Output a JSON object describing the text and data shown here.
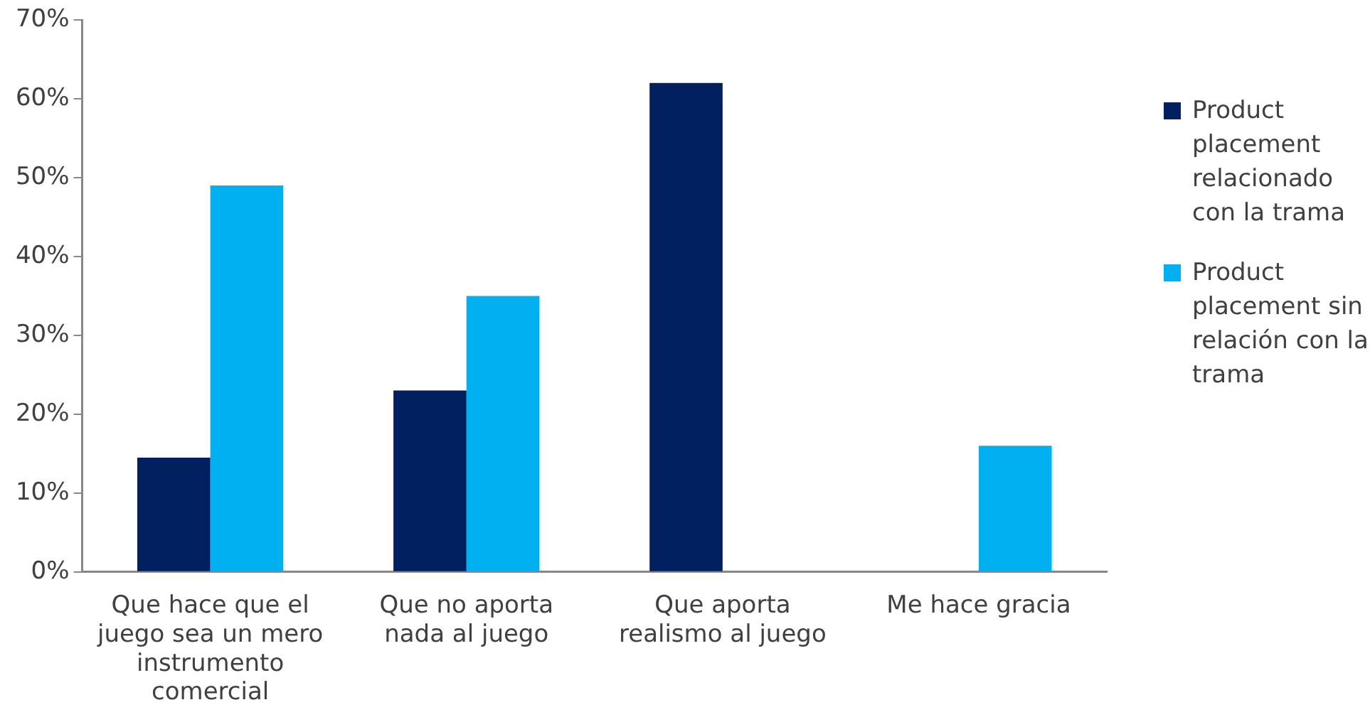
{
  "chart_data": {
    "type": "bar",
    "categories": [
      "Que hace que el juego sea un mero instrumento comercial",
      "Que no aporta nada al juego",
      "Que aporta realismo al juego",
      "Me hace gracia"
    ],
    "series": [
      {
        "name": "Product placement relacionado con la trama",
        "color": "#002060",
        "values": [
          14.5,
          23,
          62,
          0
        ]
      },
      {
        "name": "Product placement sin relación con la trama",
        "color": "#00b0f0",
        "values": [
          49,
          35,
          0,
          16
        ]
      }
    ],
    "ylim": [
      0,
      70
    ],
    "yticks": [
      {
        "value": 0,
        "label": "0%"
      },
      {
        "value": 10,
        "label": "10%"
      },
      {
        "value": 20,
        "label": "20%"
      },
      {
        "value": 30,
        "label": "30%"
      },
      {
        "value": 40,
        "label": "40%"
      },
      {
        "value": 50,
        "label": "50%"
      },
      {
        "value": 60,
        "label": "60%"
      },
      {
        "value": 70,
        "label": "70%"
      }
    ],
    "grid": false,
    "legend": "right"
  }
}
